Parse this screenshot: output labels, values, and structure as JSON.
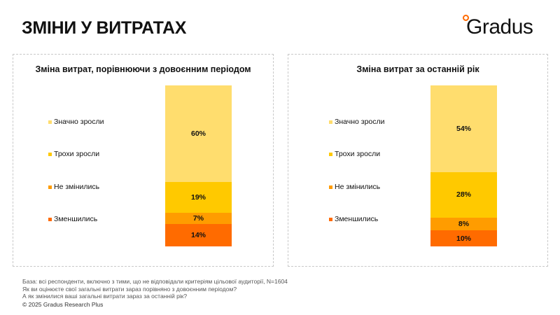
{
  "title": "ЗМІНИ У ВИТРАТАХ",
  "logo": "Gradus",
  "chart_data": [
    {
      "type": "bar",
      "stacked": true,
      "title": "Зміна витрат, порівнюючи з довоєнним періодом",
      "series": [
        {
          "name": "Значно зросли",
          "value": 60,
          "label": "60%",
          "color": "#FFDD6E"
        },
        {
          "name": "Трохи зросли",
          "value": 19,
          "label": "19%",
          "color": "#FFC900"
        },
        {
          "name": "Не змінились",
          "value": 7,
          "label": "7%",
          "color": "#FF9C00"
        },
        {
          "name": "Зменшились",
          "value": 14,
          "label": "14%",
          "color": "#FF6B00"
        }
      ]
    },
    {
      "type": "bar",
      "stacked": true,
      "title": "Зміна витрат за останній рік",
      "series": [
        {
          "name": "Значно зросли",
          "value": 54,
          "label": "54%",
          "color": "#FFDD6E"
        },
        {
          "name": "Трохи зросли",
          "value": 28,
          "label": "28%",
          "color": "#FFC900"
        },
        {
          "name": "Не змінились",
          "value": 8,
          "label": "8%",
          "color": "#FF9C00"
        },
        {
          "name": "Зменшились",
          "value": 10,
          "label": "10%",
          "color": "#FF6B00"
        }
      ]
    }
  ],
  "footer": {
    "base": "База: всі респонденти, включно з тими, що не відповідали критеріям цільової аудиторії, N=1604",
    "q1": "Як ви оцінюєте свої загальні витрати зараз порівняно з довоєнним періодом?",
    "q2": "А як змінилися ваші загальні витрати зараз за останній рік?",
    "copyright": "© 2025 Gradus Research Plus"
  }
}
